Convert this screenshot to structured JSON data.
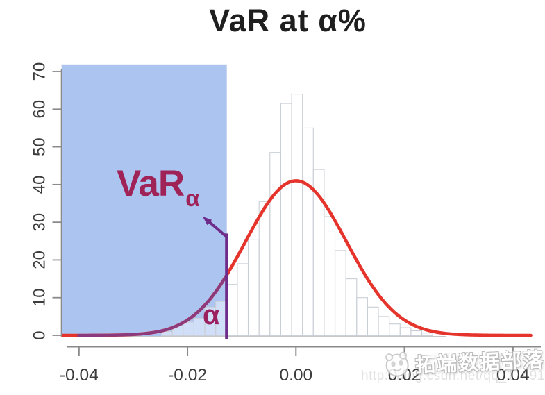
{
  "title": "VaR at α%",
  "colors": {
    "shaded_region": "#ABC4F0",
    "shaded_region_border": "#96AFE0",
    "density_curve": "#E5342B",
    "tail_curve": "#8C3A7E",
    "threshold_line": "#6E2B8A",
    "var_label": "#A02358",
    "alpha_label": "#9A2060",
    "bar_fill": "rgba(255,255,255,0.45)",
    "bar_stroke": "#C9CED6",
    "axis": "#8A8A8A",
    "tick_label": "#3C3C3C",
    "baseline": "#C6C6C6"
  },
  "chart_data": {
    "type": "bar",
    "subtype": "histogram-with-density",
    "title": "VaR at α%",
    "xlabel": "",
    "ylabel": "",
    "x_axis": {
      "ticks": [
        -0.04,
        -0.02,
        0,
        0.02,
        0.04
      ],
      "tick_labels": [
        "-0.04",
        "-0.02",
        "0.00",
        "0.02",
        "0.04"
      ],
      "range": [
        -0.0432,
        0.0437
      ]
    },
    "y_axis": {
      "ticks": [
        0,
        10,
        20,
        30,
        40,
        50,
        60,
        70
      ],
      "tick_labels": [
        "0",
        "10",
        "20",
        "30",
        "40",
        "50",
        "60",
        "70"
      ],
      "range": [
        0,
        72
      ]
    },
    "grid": "off",
    "histogram": {
      "bin_start": -0.0248,
      "bin_width": 0.002,
      "counts": [
        1,
        2.5,
        3.5,
        4.5,
        7.5,
        9,
        13.5,
        19,
        25.5,
        35.5,
        48.5,
        61.5,
        64,
        55,
        44,
        31.5,
        22.5,
        15,
        10,
        7.5,
        5,
        3,
        2,
        1.2,
        0.6
      ]
    },
    "density_curve": {
      "shape": "gaussian",
      "mean": 0,
      "sigma": 0.0093,
      "peak": 41,
      "x_from": -0.0431,
      "x_to": 0.0436
    },
    "var_threshold": -0.0128,
    "shaded_region": {
      "x_from": "plot-left-edge",
      "x_to": -0.0128,
      "y_from": 0,
      "y_to": 71.8
    },
    "annotations": {
      "var_main": "VaR",
      "var_sub": "α",
      "alpha": "α"
    }
  },
  "watermark": {
    "brand": "拓端数据部落",
    "url_left": "http://blog.csdn.net/qq_1",
    "url_right": "491"
  }
}
